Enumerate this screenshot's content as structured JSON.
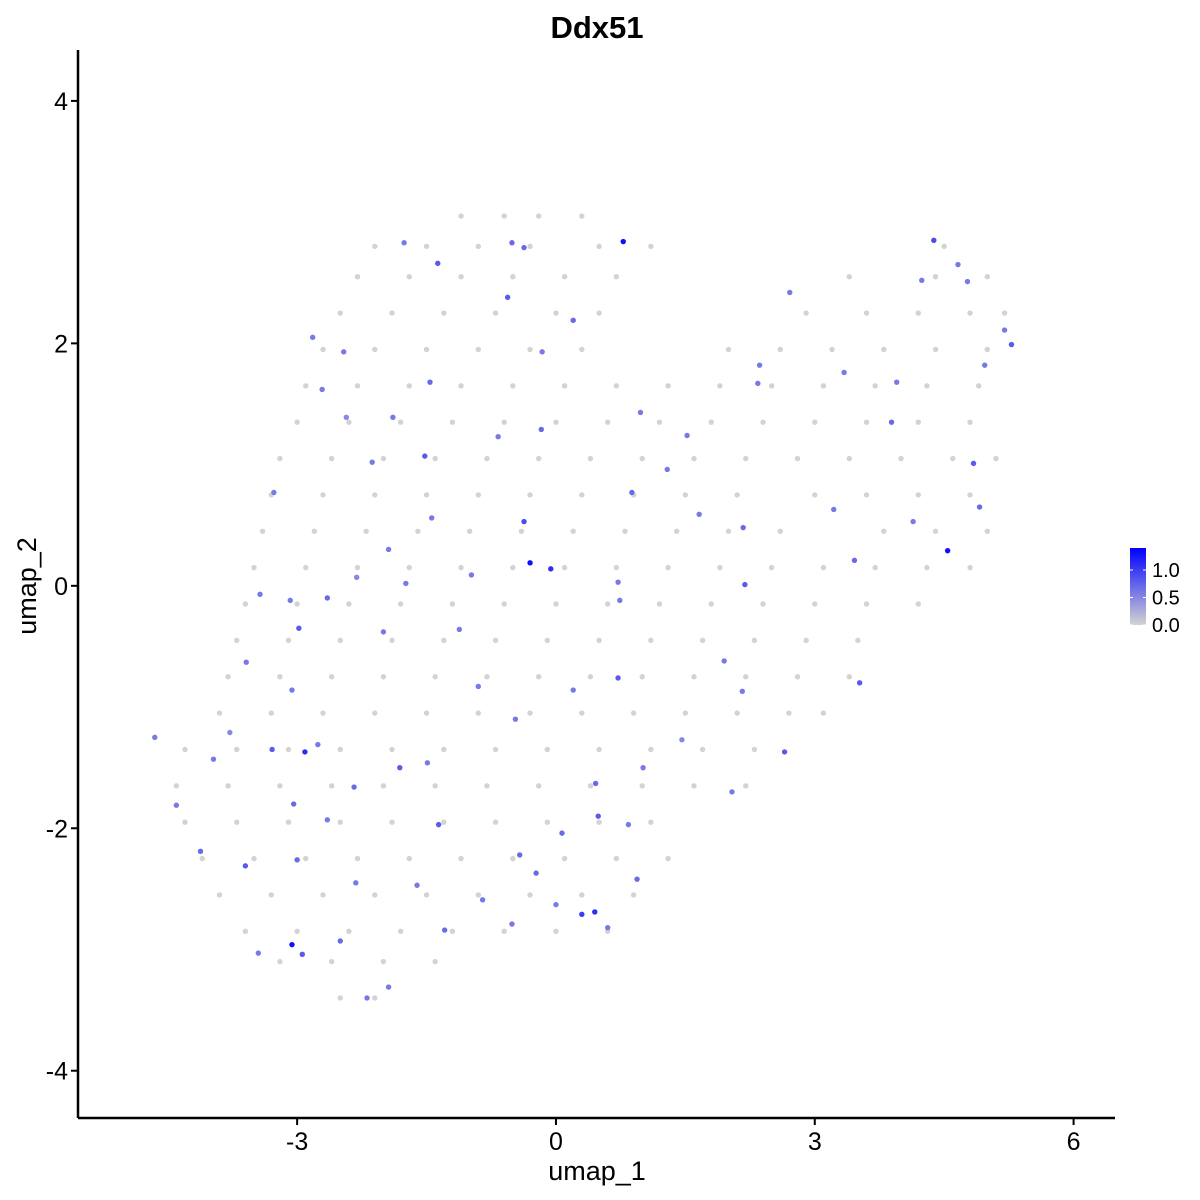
{
  "chart_data": {
    "type": "scatter",
    "title": "Ddx51",
    "xlabel": "umap_1",
    "ylabel": "umap_2",
    "x": [
      -1.1,
      -0.6,
      -0.2,
      0.3,
      -2.1,
      -1.5,
      -0.9,
      -0.3,
      0.5,
      1.1,
      4.5,
      -2.3,
      -1.7,
      -1.1,
      -0.5,
      0.1,
      0.7,
      3.4,
      4.4,
      5.0,
      -2.5,
      -1.9,
      -1.3,
      -0.7,
      0,
      0.5,
      2.9,
      3.6,
      4.2,
      4.8,
      5.2,
      -2.7,
      -2.1,
      -1.5,
      -0.9,
      -0.3,
      0.3,
      2.0,
      2.6,
      3.2,
      3.8,
      4.4,
      5.0,
      -2.9,
      -2.3,
      -1.7,
      -1.1,
      -0.5,
      0.1,
      0.7,
      1.3,
      1.9,
      2.5,
      3.1,
      3.7,
      4.3,
      4.9,
      -3.0,
      -2.4,
      -1.8,
      -1.2,
      -0.6,
      0,
      0.6,
      1.2,
      1.8,
      2.4,
      3.0,
      3.6,
      4.2,
      4.8,
      -3.2,
      -2.6,
      -2.0,
      -1.4,
      -0.8,
      -0.2,
      0.4,
      1.0,
      1.6,
      2.2,
      2.8,
      3.4,
      4.0,
      4.6,
      5.1,
      -3.3,
      -2.7,
      -2.1,
      -1.5,
      -0.9,
      -0.3,
      0.3,
      0.9,
      1.5,
      2.1,
      3.0,
      3.6,
      4.2,
      4.8,
      -3.4,
      -2.8,
      -2.2,
      -1.6,
      -1.0,
      -0.4,
      0.2,
      0.8,
      1.4,
      2.0,
      2.6,
      3.8,
      4.4,
      5.0,
      -3.5,
      -2.9,
      -2.3,
      -1.7,
      -1.1,
      -0.5,
      0.1,
      0.7,
      1.3,
      1.9,
      2.5,
      3.1,
      3.7,
      4.3,
      4.8,
      -3.6,
      -3.0,
      -2.4,
      -1.8,
      -1.2,
      -0.6,
      0,
      0.6,
      1.2,
      1.8,
      2.4,
      3.0,
      3.6,
      4.2,
      -3.7,
      -3.1,
      -2.5,
      -1.9,
      -1.3,
      -0.7,
      -0.1,
      0.5,
      1.1,
      1.7,
      2.3,
      2.9,
      3.5,
      -3.8,
      -3.2,
      -2.6,
      -2.0,
      -1.4,
      -0.8,
      -0.2,
      0.4,
      1.0,
      1.6,
      2.2,
      2.8,
      3.4,
      -3.9,
      -3.3,
      -2.7,
      -2.1,
      -1.5,
      -0.9,
      -0.3,
      0.3,
      0.9,
      1.5,
      2.1,
      2.7,
      3.1,
      -4.3,
      -3.7,
      -3.1,
      -2.5,
      -1.9,
      -1.3,
      -0.7,
      -0.1,
      0.5,
      1.1,
      1.7,
      2.3,
      -4.4,
      -3.8,
      -3.2,
      -2.6,
      -2.0,
      -1.4,
      -0.8,
      -0.2,
      0.4,
      1.0,
      1.6,
      2.2,
      -4.3,
      -3.7,
      -3.1,
      -2.5,
      -1.9,
      -1.3,
      -0.7,
      -0.1,
      0.5,
      1.1,
      -4.1,
      -3.5,
      -2.9,
      -2.3,
      -1.7,
      -1.1,
      -0.5,
      0.1,
      0.7,
      1.3,
      -3.9,
      -3.3,
      -2.7,
      -2.1,
      -1.5,
      -0.9,
      -0.3,
      0.3,
      0.9,
      -3.6,
      -3.0,
      -2.4,
      -1.8,
      -1.2,
      -0.6,
      0,
      0.6,
      -3.2,
      -2.6,
      -2.0,
      -1.4,
      -2.5,
      -2.1,
      0.78,
      -0.3,
      4.54,
      -3.06,
      0.45,
      0.3,
      -2.91,
      -0.06,
      4.38,
      -0.51,
      -1.76,
      -1.37,
      -0.56,
      0.2,
      -0.37,
      -0.16,
      -1.46,
      -1.89,
      -2.43,
      -2.13,
      -1.52,
      -1.44,
      -1.94,
      -0.37,
      -0.67,
      -0.17,
      0.72,
      0.88,
      1.66,
      2.19,
      2.17,
      2.65,
      3.52,
      3.46,
      3.22,
      3.89,
      4.84,
      4.91,
      5.28,
      4.77,
      2.71,
      2.34,
      1.52,
      0.72,
      0.2,
      -0.47,
      -0.9,
      -1.12,
      -2.0,
      -2.31,
      -2.98,
      -3.08,
      -3.59,
      -3.78,
      -3.29,
      -3.97,
      -4.4,
      -4.12,
      -3.6,
      -3.0,
      -3.04,
      -2.65,
      -2.34,
      -1.81,
      -1.49,
      -1.36,
      -1.29,
      -2.94,
      -3.45,
      -2.5,
      -2.19,
      -1.94,
      -0.42,
      0.07,
      0.49,
      0.46,
      0.94,
      0.84,
      1.01,
      2.04,
      2.16,
      1.95,
      1.46,
      -0.23,
      -0.85,
      -0.51,
      0,
      0.6,
      -0.98,
      -1.74,
      -2.65,
      -2.76,
      -2.32,
      -1.61,
      0.74,
      4.14,
      3.95,
      2.36,
      3.34,
      4.66,
      4.24,
      5.2,
      4.97,
      0.98,
      1.29,
      -2.71,
      -2.46,
      -2.82,
      -3.27,
      -3.43,
      -3.06,
      -4.65
    ],
    "y": [
      3.05,
      3.05,
      3.05,
      3.05,
      2.8,
      2.8,
      2.8,
      2.8,
      2.8,
      2.8,
      2.8,
      2.55,
      2.55,
      2.55,
      2.55,
      2.55,
      2.55,
      2.55,
      2.55,
      2.55,
      2.25,
      2.25,
      2.25,
      2.25,
      2.25,
      2.25,
      2.25,
      2.25,
      2.25,
      2.25,
      2.25,
      1.95,
      1.95,
      1.95,
      1.95,
      1.95,
      1.95,
      1.95,
      1.95,
      1.95,
      1.95,
      1.95,
      1.95,
      1.65,
      1.65,
      1.65,
      1.65,
      1.65,
      1.65,
      1.65,
      1.65,
      1.65,
      1.65,
      1.65,
      1.65,
      1.65,
      1.65,
      1.35,
      1.35,
      1.35,
      1.35,
      1.35,
      1.35,
      1.35,
      1.35,
      1.35,
      1.35,
      1.35,
      1.35,
      1.35,
      1.35,
      1.05,
      1.05,
      1.05,
      1.05,
      1.05,
      1.05,
      1.05,
      1.05,
      1.05,
      1.05,
      1.05,
      1.05,
      1.05,
      1.05,
      1.05,
      0.75,
      0.75,
      0.75,
      0.75,
      0.75,
      0.75,
      0.75,
      0.75,
      0.75,
      0.75,
      0.75,
      0.75,
      0.75,
      0.75,
      0.45,
      0.45,
      0.45,
      0.45,
      0.45,
      0.45,
      0.45,
      0.45,
      0.45,
      0.45,
      0.45,
      0.45,
      0.45,
      0.45,
      0.15,
      0.15,
      0.15,
      0.15,
      0.15,
      0.15,
      0.15,
      0.15,
      0.15,
      0.15,
      0.15,
      0.15,
      0.15,
      0.15,
      0.15,
      -0.15,
      -0.15,
      -0.15,
      -0.15,
      -0.15,
      -0.15,
      -0.15,
      -0.15,
      -0.15,
      -0.15,
      -0.15,
      -0.15,
      -0.15,
      -0.15,
      -0.45,
      -0.45,
      -0.45,
      -0.45,
      -0.45,
      -0.45,
      -0.45,
      -0.45,
      -0.45,
      -0.45,
      -0.45,
      -0.45,
      -0.45,
      -0.75,
      -0.75,
      -0.75,
      -0.75,
      -0.75,
      -0.75,
      -0.75,
      -0.75,
      -0.75,
      -0.75,
      -0.75,
      -0.75,
      -0.75,
      -1.05,
      -1.05,
      -1.05,
      -1.05,
      -1.05,
      -1.05,
      -1.05,
      -1.05,
      -1.05,
      -1.05,
      -1.05,
      -1.05,
      -1.05,
      -1.35,
      -1.35,
      -1.35,
      -1.35,
      -1.35,
      -1.35,
      -1.35,
      -1.35,
      -1.35,
      -1.35,
      -1.35,
      -1.35,
      -1.65,
      -1.65,
      -1.65,
      -1.65,
      -1.65,
      -1.65,
      -1.65,
      -1.65,
      -1.65,
      -1.65,
      -1.65,
      -1.65,
      -1.95,
      -1.95,
      -1.95,
      -1.95,
      -1.95,
      -1.95,
      -1.95,
      -1.95,
      -1.95,
      -1.95,
      -2.25,
      -2.25,
      -2.25,
      -2.25,
      -2.25,
      -2.25,
      -2.25,
      -2.25,
      -2.25,
      -2.25,
      -2.55,
      -2.55,
      -2.55,
      -2.55,
      -2.55,
      -2.55,
      -2.55,
      -2.55,
      -2.55,
      -2.85,
      -2.85,
      -2.85,
      -2.85,
      -2.85,
      -2.85,
      -2.85,
      -2.85,
      -3.1,
      -3.1,
      -3.1,
      -3.1,
      -3.4,
      -3.4,
      2.84,
      0.19,
      0.29,
      -2.96,
      -2.69,
      -2.71,
      -1.37,
      0.14,
      2.85,
      2.83,
      2.83,
      2.66,
      2.38,
      2.19,
      2.79,
      1.93,
      1.68,
      1.39,
      1.39,
      1.02,
      1.07,
      0.56,
      0.3,
      0.53,
      1.23,
      1.29,
      0.03,
      0.77,
      0.59,
      0.01,
      0.48,
      -1.37,
      -0.8,
      0.21,
      0.63,
      1.35,
      1.01,
      0.65,
      1.99,
      2.51,
      2.42,
      1.67,
      1.24,
      -0.76,
      -0.86,
      -1.1,
      -0.83,
      -0.36,
      -0.38,
      0.07,
      -0.35,
      -0.12,
      -0.63,
      -1.21,
      -1.35,
      -1.43,
      -1.81,
      -2.19,
      -2.31,
      -2.26,
      -1.8,
      -1.93,
      -1.66,
      -1.5,
      -1.46,
      -1.97,
      -2.84,
      -3.04,
      -3.03,
      -2.93,
      -3.4,
      -3.31,
      -2.22,
      -2.04,
      -1.9,
      -1.63,
      -2.42,
      -1.97,
      -1.5,
      -1.7,
      -0.87,
      -0.62,
      -1.27,
      -2.37,
      -2.59,
      -2.79,
      -2.63,
      -2.82,
      0.09,
      0.02,
      -0.1,
      -1.31,
      -2.45,
      -2.47,
      -0.12,
      0.53,
      1.68,
      1.82,
      1.76,
      2.65,
      2.52,
      2.11,
      1.82,
      1.43,
      0.96,
      1.62,
      1.93,
      2.05,
      0.77,
      -0.07,
      -0.86,
      -1.25
    ],
    "values": [
      0,
      0,
      0,
      0,
      0,
      0,
      0,
      0,
      0,
      0,
      0,
      0,
      0,
      0,
      0,
      0,
      0,
      0,
      0,
      0,
      0,
      0,
      0,
      0,
      0,
      0,
      0,
      0,
      0,
      0,
      0,
      0,
      0,
      0,
      0,
      0,
      0,
      0,
      0,
      0,
      0,
      0,
      0,
      0,
      0,
      0,
      0,
      0,
      0,
      0,
      0,
      0,
      0,
      0,
      0,
      0,
      0,
      0,
      0,
      0,
      0,
      0,
      0,
      0,
      0,
      0,
      0,
      0,
      0,
      0,
      0,
      0,
      0,
      0,
      0,
      0,
      0,
      0,
      0,
      0,
      0,
      0,
      0,
      0,
      0,
      0,
      0,
      0,
      0,
      0,
      0,
      0,
      0,
      0,
      0,
      0,
      0,
      0,
      0,
      0,
      0,
      0,
      0,
      0,
      0,
      0,
      0,
      0,
      0,
      0,
      0,
      0,
      0,
      0,
      0,
      0,
      0,
      0,
      0,
      0,
      0,
      0,
      0,
      0,
      0,
      0,
      0,
      0,
      0,
      0,
      0,
      0,
      0,
      0,
      0,
      0,
      0,
      0,
      0,
      0,
      0,
      0,
      0,
      0,
      0,
      0,
      0,
      0,
      0,
      0,
      0,
      0,
      0,
      0,
      0,
      0,
      0,
      0,
      0,
      0,
      0,
      0,
      0,
      0,
      0,
      0,
      0,
      0,
      0,
      0,
      0,
      0,
      0,
      0,
      0,
      0,
      0,
      0,
      0,
      0,
      0,
      0,
      0,
      0,
      0,
      0,
      0,
      0,
      0,
      0,
      0,
      0,
      0,
      0,
      0,
      0,
      0,
      0,
      0,
      0,
      0,
      0,
      0,
      0,
      0,
      0,
      0,
      0,
      0,
      0,
      0,
      0,
      0,
      0,
      0,
      0,
      0,
      0,
      0,
      0,
      0,
      0,
      0,
      0,
      0,
      0,
      0,
      0,
      0,
      0,
      0,
      0,
      0,
      0,
      0,
      0,
      0,
      0,
      0,
      0,
      0,
      0,
      0,
      0,
      0,
      0,
      0,
      0,
      0,
      1.3,
      1.3,
      1.3,
      1.3,
      1.1,
      1.0,
      1.1,
      1.1,
      0.9,
      0.7,
      0.6,
      0.8,
      0.8,
      0.7,
      0.7,
      0.6,
      0.7,
      0.6,
      0.5,
      0.6,
      0.8,
      0.6,
      0.6,
      0.9,
      0.6,
      0.7,
      0.6,
      0.7,
      0.6,
      0.8,
      0.7,
      0.8,
      0.8,
      0.7,
      0.6,
      0.7,
      0.8,
      0.7,
      0.8,
      0.6,
      0.6,
      0.6,
      0.6,
      0.8,
      0.6,
      0.6,
      0.6,
      0.6,
      0.6,
      0.5,
      0.8,
      0.6,
      0.6,
      0.5,
      0.8,
      0.6,
      0.6,
      0.7,
      0.8,
      0.7,
      0.7,
      0.6,
      0.7,
      0.8,
      0.6,
      0.8,
      0.7,
      0.8,
      0.6,
      0.7,
      0.6,
      0.6,
      0.7,
      0.7,
      0.8,
      0.7,
      0.7,
      0.6,
      0.6,
      0.6,
      0.6,
      0.6,
      0.5,
      0.7,
      0.6,
      0.6,
      0.6,
      0.6,
      0.6,
      0.6,
      0.7,
      0.6,
      0.6,
      0.6,
      0.6,
      0.6,
      0.6,
      0.6,
      0.6,
      0.6,
      0.6,
      0.6,
      0.6,
      0.6,
      0.6,
      0.6,
      0.6,
      0.6,
      0.6,
      0.6,
      0.6,
      0.6
    ],
    "xlim": [
      -5.54,
      6.48
    ],
    "ylim": [
      -4.39,
      4.42
    ],
    "xticks": [
      -3,
      0,
      3,
      6
    ],
    "yticks": [
      -4,
      -2,
      0,
      2,
      4
    ],
    "colorlim": [
      0,
      1.4
    ],
    "colorticks": [
      {
        "value": 0,
        "label": "0.0"
      },
      0.5,
      {
        "value": 1,
        "label": "1.0"
      }
    ],
    "color_low": "#D3D3D3",
    "color_high": "#0000FF",
    "grid": false
  }
}
